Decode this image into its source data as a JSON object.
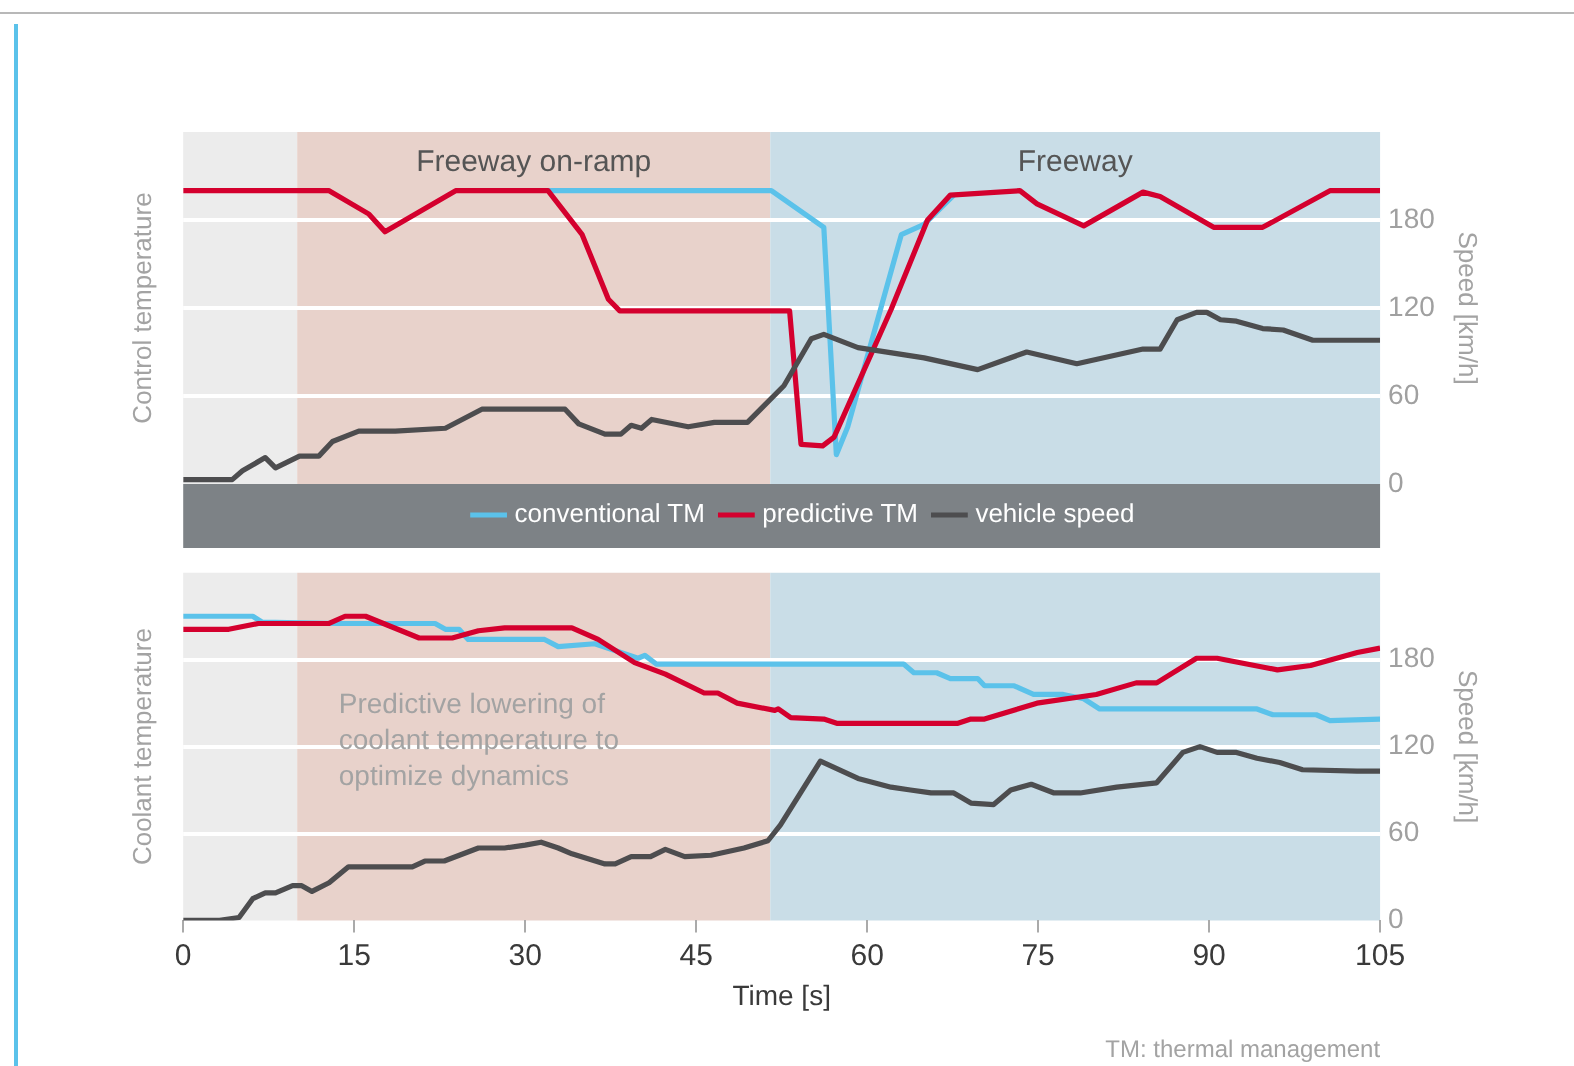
{
  "chart_data": [
    {
      "type": "line",
      "ylabel": "Control temperature",
      "y2label": "Speed [km/h]",
      "xlim": [
        0,
        105
      ],
      "y2lim": [
        0,
        240
      ],
      "y2ticks": [
        0,
        60,
        120,
        180
      ],
      "tick_labels": "y2",
      "grid": "y",
      "legend": "bottom",
      "marker": "none",
      "bands": [
        {
          "axis": "x",
          "from": 0,
          "to": 10,
          "color": "#ececec"
        },
        {
          "axis": "x",
          "from": 10,
          "to": 51.5,
          "label": "Freeway on-ramp",
          "color": "#e8d2cb"
        },
        {
          "axis": "x",
          "from": 51.5,
          "to": 105,
          "label": "Freeway",
          "color": "#c9dde7"
        }
      ],
      "series": [
        {
          "name": "conventional TM",
          "color": "#5bc2ea",
          "axis": "y2",
          "x": [
            32,
            51.6,
            56.2,
            57.3,
            58.3,
            63,
            65,
            67.6
          ],
          "values": [
            200,
            200,
            175,
            20,
            39,
            170,
            177,
            197
          ]
        },
        {
          "name": "predictive TM",
          "color": "#d4002e",
          "axis": "y2",
          "x": [
            0,
            12.8,
            16.3,
            17.7,
            23.9,
            32,
            35,
            37.3,
            38.3,
            53.2,
            54.2,
            56.1,
            57.1,
            62.1,
            65.3,
            67.3,
            73.4,
            74.9,
            79,
            84.2,
            85.7,
            90.4,
            94.7,
            100.6,
            105
          ],
          "values": [
            200,
            200,
            184,
            172,
            200,
            200,
            170,
            126,
            118,
            118,
            27,
            26,
            32,
            119,
            180,
            197,
            200,
            191,
            176,
            199,
            196,
            175,
            175,
            200,
            200
          ]
        },
        {
          "name": "vehicle speed",
          "color": "#4d4d4f",
          "axis": "y2",
          "x": [
            0,
            4.3,
            5.2,
            7.2,
            8.1,
            10.2,
            11.9,
            13.1,
            15.4,
            18.6,
            23,
            26.2,
            33.5,
            34.7,
            37,
            38.4,
            39.3,
            40.2,
            41.1,
            44.3,
            46.6,
            49.5,
            52.7,
            55.1,
            56.2,
            59.2,
            65,
            69.7,
            74,
            78.4,
            84.2,
            85.7,
            87.2,
            88.9,
            89.8,
            91,
            92.4,
            94.7,
            96.5,
            99.1,
            105
          ],
          "values": [
            3,
            3,
            9,
            18,
            11,
            19,
            19,
            29,
            36,
            36,
            38,
            51,
            51,
            41,
            34,
            34,
            40,
            38,
            44,
            39,
            42,
            42,
            67,
            99,
            102,
            93,
            86,
            78,
            90,
            82,
            92,
            92,
            112,
            117,
            117,
            112,
            111,
            106,
            105,
            98,
            98
          ]
        }
      ]
    },
    {
      "type": "line",
      "xlabel": "Time [s]",
      "ylabel": "Coolant temperature",
      "y2label": "Speed [km/h]",
      "xlim": [
        0,
        105
      ],
      "xticks": [
        0,
        15,
        30,
        45,
        60,
        75,
        90,
        105
      ],
      "y2lim": [
        0,
        240
      ],
      "y2ticks": [
        0,
        60,
        120,
        180
      ],
      "grid": "y",
      "marker": "none",
      "annotations": [
        "Predictive lowering of coolant temperature to optimize dynamics",
        "TM: thermal management"
      ],
      "bands": [
        {
          "axis": "x",
          "from": 0,
          "to": 10,
          "color": "#ececec"
        },
        {
          "axis": "x",
          "from": 10,
          "to": 51.5,
          "color": "#e8d2cb"
        },
        {
          "axis": "x",
          "from": 51.5,
          "to": 105,
          "color": "#c9dde7"
        }
      ],
      "series": [
        {
          "color": "#5bc2ea",
          "axis": "y2",
          "x": [
            0,
            6.1,
            6.9,
            13.6,
            22.1,
            23,
            24.2,
            25,
            31.7,
            32.9,
            36.1,
            39.9,
            40.5,
            41.5,
            63.2,
            64.1,
            66.1,
            67.3,
            69.7,
            70.3,
            72.9,
            74.6,
            77.2,
            79,
            80.4,
            94.2,
            95.6,
            99.4,
            100.6,
            105
          ],
          "values": [
            210,
            210,
            206,
            205,
            205,
            201,
            201,
            194,
            194,
            189,
            191,
            181,
            183,
            177,
            177,
            171,
            171,
            167,
            167,
            162,
            162,
            156,
            156,
            153,
            146,
            146,
            142,
            142,
            138,
            139
          ]
        },
        {
          "color": "#d4002e",
          "axis": "y2",
          "x": [
            0,
            4,
            6.6,
            12.8,
            14.2,
            16,
            20.7,
            23.6,
            25.9,
            28.2,
            34.1,
            36.4,
            39.6,
            42.3,
            45.7,
            46.9,
            48.6,
            51.9,
            52.2,
            53.3,
            56.2,
            57.4,
            67.9,
            69.1,
            70.3,
            74.9,
            80.1,
            83.6,
            85.4,
            88.9,
            90.7,
            96,
            98.9,
            103,
            105
          ],
          "values": [
            201,
            201,
            205,
            205,
            210,
            210,
            195,
            195,
            200,
            202,
            202,
            194,
            178,
            170,
            157,
            157,
            150,
            145,
            146,
            140,
            139,
            136,
            136,
            139,
            139,
            150,
            156,
            164,
            164,
            181,
            181,
            173,
            176,
            185,
            188
          ]
        },
        {
          "color": "#4d4d4f",
          "axis": "y2",
          "x": [
            0,
            3.2,
            4.9,
            6.1,
            7.2,
            8.1,
            9.6,
            10.4,
            11.3,
            12.8,
            14.5,
            20.1,
            21.2,
            22.9,
            25.9,
            28.2,
            30,
            31.4,
            32.9,
            34.1,
            37,
            37.9,
            39.3,
            41,
            42.3,
            44,
            46.3,
            49.2,
            51.3,
            52.4,
            55.9,
            59.2,
            62.1,
            63.8,
            65.6,
            67.6,
            69.1,
            71.1,
            72.6,
            74.4,
            76.4,
            78.7,
            81.9,
            85.4,
            87.7,
            89.2,
            90.7,
            92.4,
            94.2,
            96.2,
            98.2,
            103,
            105
          ],
          "values": [
            0,
            0,
            2,
            15,
            19,
            19,
            24,
            24,
            20,
            26,
            37,
            37,
            41,
            41,
            50,
            50,
            52,
            54,
            50,
            46,
            39,
            39,
            44,
            44,
            49,
            44,
            45,
            50,
            55,
            66,
            110,
            98,
            92,
            90,
            88,
            88,
            81,
            80,
            90,
            94,
            88,
            88,
            92,
            95,
            116,
            120,
            116,
            116,
            112,
            109,
            104,
            103,
            103
          ]
        }
      ]
    }
  ]
}
